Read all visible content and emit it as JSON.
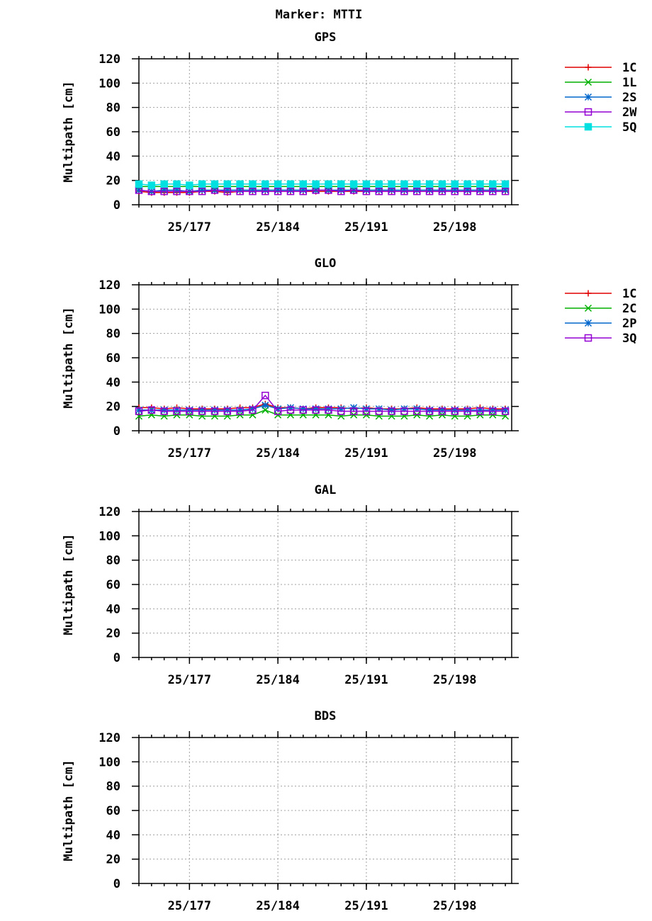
{
  "page_title": "Marker: MTTI",
  "chart_data": [
    {
      "type": "line",
      "title": "GPS",
      "ylabel": "Multipath [cm]",
      "xlabel": "",
      "xlim": [
        173,
        202.5
      ],
      "ylim": [
        0,
        120
      ],
      "yticks": [
        0,
        20,
        40,
        60,
        80,
        100,
        120
      ],
      "xticks": [
        {
          "value": 177,
          "label": "25/177"
        },
        {
          "value": 184,
          "label": "25/184"
        },
        {
          "value": 191,
          "label": "25/191"
        },
        {
          "value": 198,
          "label": "25/198"
        }
      ],
      "x": [
        173,
        174,
        175,
        176,
        177,
        178,
        179,
        180,
        181,
        182,
        183,
        184,
        185,
        186,
        187,
        188,
        189,
        190,
        191,
        192,
        193,
        194,
        195,
        196,
        197,
        198,
        199,
        200,
        201,
        202
      ],
      "series": [
        {
          "name": "1C",
          "color": "#e00000",
          "marker": "plus",
          "values": [
            11,
            10,
            10,
            10,
            10,
            11,
            11,
            10,
            11,
            11,
            11,
            11,
            11,
            11,
            11,
            11,
            11,
            11,
            11,
            11,
            11,
            11,
            11,
            11,
            11,
            11,
            11,
            11,
            11,
            11
          ]
        },
        {
          "name": "1L",
          "color": "#00b000",
          "marker": "x",
          "values": [
            15,
            15,
            15,
            15,
            15,
            15,
            15,
            15,
            15,
            15,
            15,
            15,
            15,
            15,
            15,
            15,
            15,
            15,
            15,
            15,
            15,
            15,
            15,
            15,
            15,
            15,
            15,
            15,
            15,
            15
          ]
        },
        {
          "name": "2S",
          "color": "#0066cc",
          "marker": "star",
          "values": [
            12,
            11,
            12,
            12,
            11,
            12,
            12,
            12,
            12,
            12,
            12,
            12,
            12,
            12,
            12,
            12,
            12,
            12,
            12,
            12,
            12,
            12,
            12,
            12,
            12,
            12,
            12,
            12,
            12,
            12
          ]
        },
        {
          "name": "2W",
          "color": "#9400d3",
          "marker": "square",
          "values": [
            12,
            11,
            11,
            11,
            11,
            11,
            12,
            11,
            11,
            11,
            11,
            11,
            11,
            11,
            12,
            12,
            11,
            12,
            11,
            11,
            11,
            11,
            11,
            11,
            11,
            11,
            11,
            11,
            11,
            11
          ]
        },
        {
          "name": "5Q",
          "color": "#00e0e0",
          "marker": "filled-square",
          "values": [
            17,
            16,
            17,
            17,
            16,
            17,
            17,
            17,
            17,
            17,
            17,
            17,
            17,
            17,
            17,
            17,
            17,
            17,
            17,
            17,
            17,
            17,
            17,
            17,
            17,
            17,
            17,
            17,
            17,
            17
          ]
        }
      ]
    },
    {
      "type": "line",
      "title": "GLO",
      "ylabel": "Multipath [cm]",
      "xlabel": "",
      "xlim": [
        173,
        202.5
      ],
      "ylim": [
        0,
        120
      ],
      "yticks": [
        0,
        20,
        40,
        60,
        80,
        100,
        120
      ],
      "xticks": [
        {
          "value": 177,
          "label": "25/177"
        },
        {
          "value": 184,
          "label": "25/184"
        },
        {
          "value": 191,
          "label": "25/191"
        },
        {
          "value": 198,
          "label": "25/198"
        }
      ],
      "x": [
        173,
        174,
        175,
        176,
        177,
        178,
        179,
        180,
        181,
        182,
        183,
        184,
        185,
        186,
        187,
        188,
        189,
        190,
        191,
        192,
        193,
        194,
        195,
        196,
        197,
        198,
        199,
        200,
        201,
        202
      ],
      "series": [
        {
          "name": "1C",
          "color": "#e00000",
          "marker": "plus",
          "values": [
            19,
            19,
            18,
            19,
            18,
            18,
            18,
            18,
            19,
            19,
            22,
            19,
            19,
            18,
            19,
            19,
            19,
            18,
            19,
            18,
            18,
            18,
            19,
            18,
            18,
            18,
            18,
            19,
            18,
            18
          ]
        },
        {
          "name": "2C",
          "color": "#00b000",
          "marker": "x",
          "values": [
            12,
            13,
            12,
            13,
            13,
            12,
            12,
            12,
            13,
            13,
            17,
            13,
            13,
            13,
            13,
            13,
            12,
            13,
            13,
            12,
            12,
            12,
            13,
            12,
            13,
            12,
            12,
            13,
            13,
            12
          ]
        },
        {
          "name": "2P",
          "color": "#0066cc",
          "marker": "star",
          "values": [
            17,
            17,
            17,
            17,
            17,
            17,
            17,
            17,
            17,
            18,
            21,
            18,
            19,
            18,
            18,
            18,
            18,
            19,
            18,
            18,
            17,
            18,
            18,
            17,
            17,
            17,
            17,
            17,
            17,
            17
          ]
        },
        {
          "name": "3Q",
          "color": "#9400d3",
          "marker": "square",
          "values": [
            16,
            17,
            16,
            16,
            16,
            16,
            16,
            16,
            16,
            17,
            29,
            16,
            17,
            17,
            17,
            17,
            16,
            16,
            16,
            16,
            16,
            16,
            16,
            16,
            16,
            16,
            16,
            16,
            16,
            16
          ]
        }
      ]
    },
    {
      "type": "line",
      "title": "GAL",
      "ylabel": "Multipath [cm]",
      "xlabel": "",
      "xlim": [
        173,
        202.5
      ],
      "ylim": [
        0,
        120
      ],
      "yticks": [
        0,
        20,
        40,
        60,
        80,
        100,
        120
      ],
      "xticks": [
        {
          "value": 177,
          "label": "25/177"
        },
        {
          "value": 184,
          "label": "25/184"
        },
        {
          "value": 191,
          "label": "25/191"
        },
        {
          "value": 198,
          "label": "25/198"
        }
      ],
      "x": [],
      "series": []
    },
    {
      "type": "line",
      "title": "BDS",
      "ylabel": "Multipath [cm]",
      "xlabel": "",
      "xlim": [
        173,
        202.5
      ],
      "ylim": [
        0,
        120
      ],
      "yticks": [
        0,
        20,
        40,
        60,
        80,
        100,
        120
      ],
      "xticks": [
        {
          "value": 177,
          "label": "25/177"
        },
        {
          "value": 184,
          "label": "25/184"
        },
        {
          "value": 191,
          "label": "25/191"
        },
        {
          "value": 198,
          "label": "25/198"
        }
      ],
      "x": [],
      "series": []
    }
  ]
}
